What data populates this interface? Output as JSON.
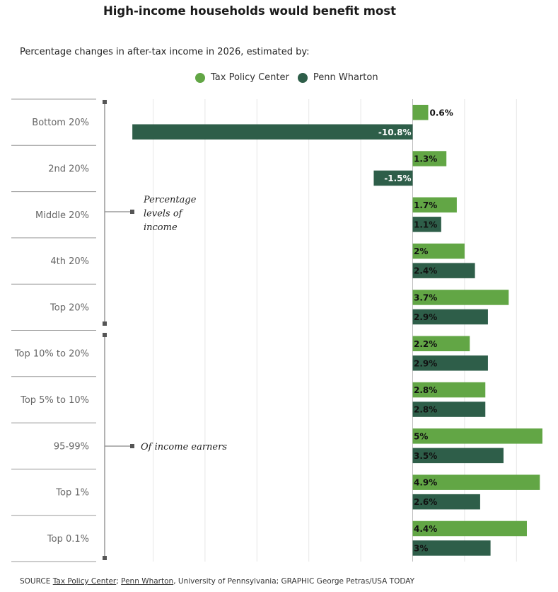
{
  "title": "High-income households would benefit most",
  "subtitle": "Percentage changes in after-tax income in 2026, estimated by:",
  "legend": [
    {
      "name": "Tax Policy Center",
      "color": "#62a645"
    },
    {
      "name": "Penn Wharton",
      "color": "#2e5e49"
    }
  ],
  "annotations": {
    "group1_lines": [
      "Percentage",
      "levels of",
      "income"
    ],
    "group2": "Of income earners"
  },
  "source": {
    "prefix": "SOURCE ",
    "link1": "Tax Policy Center",
    "sep": "; ",
    "link2": "Penn Wharton",
    "rest": ", University of Pennsylvania; GRAPHIC George Petras/USA TODAY"
  },
  "chart_data": {
    "type": "bar",
    "orientation": "horizontal",
    "categories": [
      "Bottom 20%",
      "2nd 20%",
      "Middle 20%",
      "4th 20%",
      "Top 20%",
      "Top 10% to 20%",
      "Top 5% to 10%",
      "95-99%",
      "Top 1%",
      "Top 0.1%"
    ],
    "series": [
      {
        "name": "Tax Policy Center",
        "color": "#62a645",
        "values": [
          0.6,
          1.3,
          1.7,
          2,
          3.7,
          2.2,
          2.8,
          5,
          4.9,
          4.4
        ],
        "labels": [
          "0.6%",
          "1.3%",
          "1.7%",
          "2%",
          "3.7%",
          "2.2%",
          "2.8%",
          "5%",
          "4.9%",
          "4.4%"
        ]
      },
      {
        "name": "Penn Wharton",
        "color": "#2e5e49",
        "values": [
          -10.8,
          -1.5,
          1.1,
          2.4,
          2.9,
          2.9,
          2.8,
          3.5,
          2.6,
          3
        ],
        "labels": [
          "-10.8%",
          "-1.5%",
          "1.1%",
          "2.4%",
          "2.9%",
          "2.9%",
          "2.8%",
          "3.5%",
          "2.6%",
          "3%"
        ]
      }
    ],
    "xlim": [
      -11,
      5
    ],
    "grid": true
  }
}
